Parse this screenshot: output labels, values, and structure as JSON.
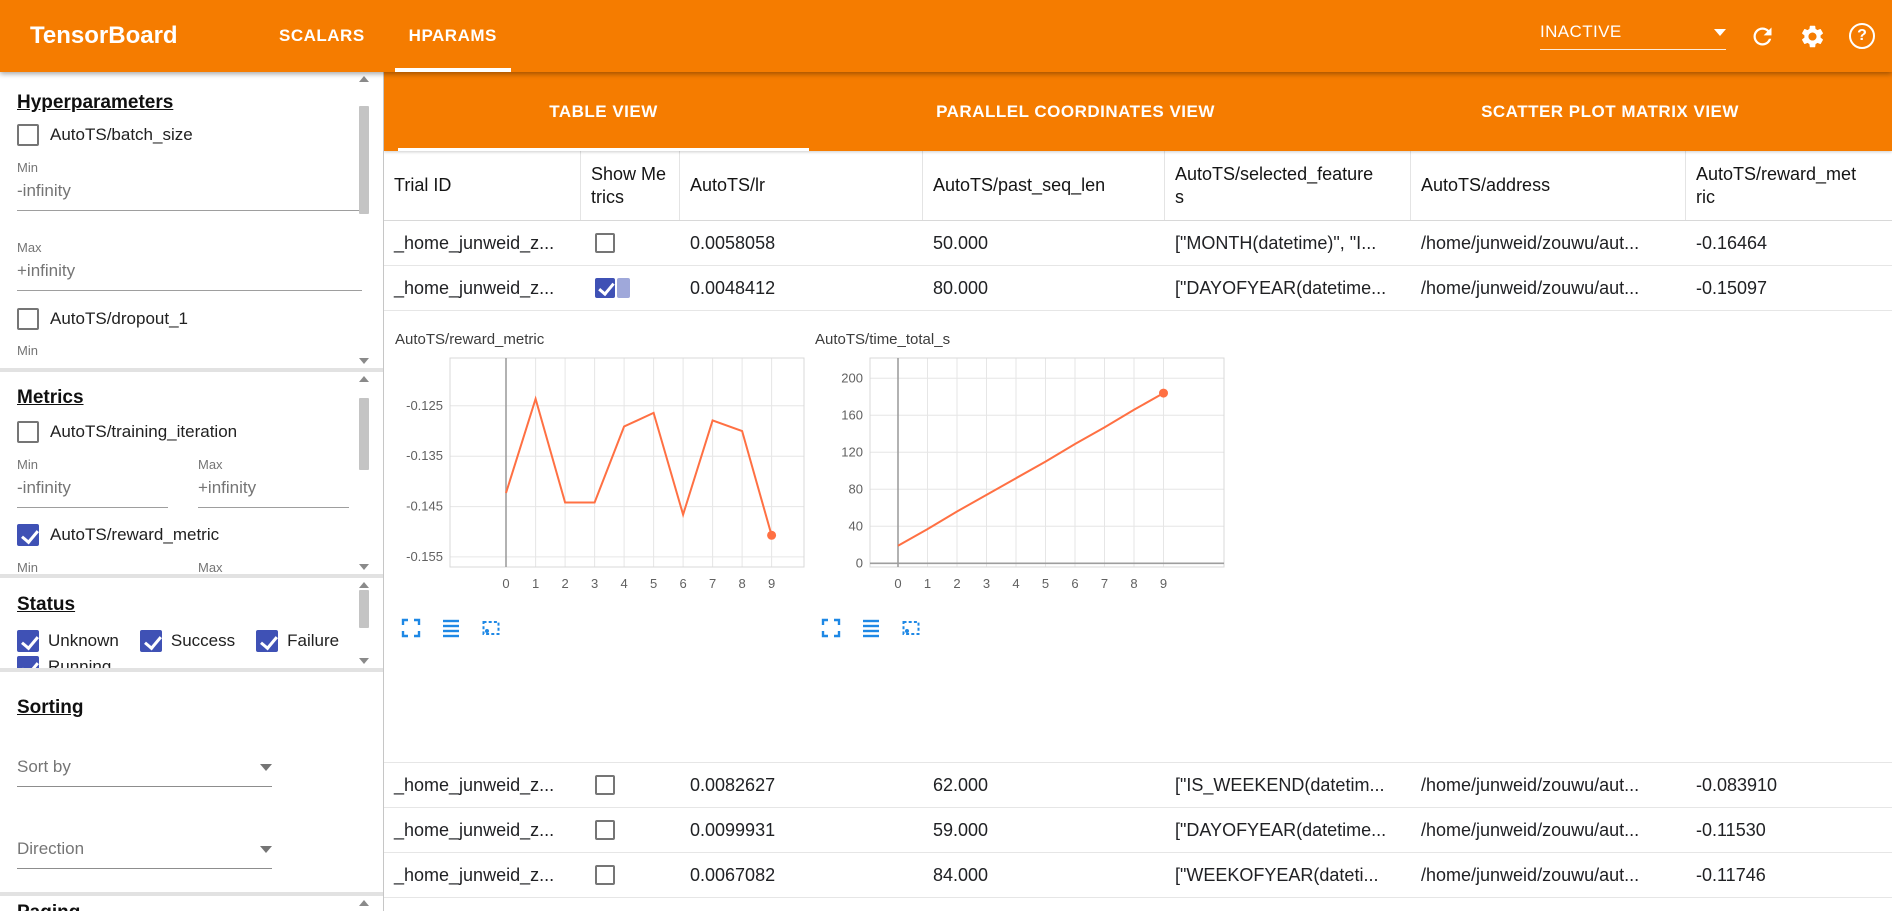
{
  "header": {
    "app_title": "TensorBoard",
    "tabs": [
      {
        "label": "SCALARS",
        "active": false
      },
      {
        "label": "HPARAMS",
        "active": true
      }
    ],
    "status_dropdown": "INACTIVE",
    "icons": [
      "refresh-icon",
      "gear-icon",
      "help-icon"
    ]
  },
  "sidebar": {
    "hyperparameters": {
      "title": "Hyperparameters",
      "items": [
        {
          "label": "AutoTS/batch_size",
          "checked": false
        },
        {
          "label": "AutoTS/dropout_1",
          "checked": false
        }
      ],
      "min_label": "Min",
      "max_label": "Max",
      "min_value": "-infinity",
      "max_value": "+infinity",
      "dropout_min_label": "Min"
    },
    "metrics": {
      "title": "Metrics",
      "items": [
        {
          "label": "AutoTS/training_iteration",
          "checked": false
        },
        {
          "label": "AutoTS/reward_metric",
          "checked": true
        }
      ],
      "min_label": "Min",
      "max_label": "Max",
      "min_value": "-infinity",
      "max_value": "+infinity"
    },
    "status": {
      "title": "Status",
      "items": [
        {
          "label": "Unknown",
          "checked": true
        },
        {
          "label": "Success",
          "checked": true
        },
        {
          "label": "Failure",
          "checked": true
        },
        {
          "label": "Running",
          "checked": true
        }
      ]
    },
    "sorting": {
      "title": "Sorting",
      "sort_by_placeholder": "Sort by",
      "direction_placeholder": "Direction"
    },
    "paging": {
      "title": "Paging"
    }
  },
  "main": {
    "view_tabs": [
      {
        "label": "TABLE VIEW",
        "active": true
      },
      {
        "label": "PARALLEL COORDINATES VIEW",
        "active": false
      },
      {
        "label": "SCATTER PLOT MATRIX VIEW",
        "active": false
      }
    ],
    "table": {
      "columns": [
        "Trial ID",
        "Show Metrics",
        "AutoTS/lr",
        "AutoTS/past_seq_len",
        "AutoTS/selected_features",
        "AutoTS/address",
        "AutoTS/reward_metric"
      ],
      "rows": [
        {
          "trial_id": "_home_junweid_z...",
          "show_metrics": false,
          "lr": "0.0058058",
          "past_seq_len": "50.000",
          "selected_features": "[\"MONTH(datetime)\", \"I...",
          "address": "/home/junweid/zouwu/aut...",
          "reward_metric": "-0.16464",
          "expanded": false
        },
        {
          "trial_id": "_home_junweid_z...",
          "show_metrics": true,
          "lr": "0.0048412",
          "past_seq_len": "80.000",
          "selected_features": "[\"DAYOFYEAR(datetime...",
          "address": "/home/junweid/zouwu/aut...",
          "reward_metric": "-0.15097",
          "expanded": true
        },
        {
          "trial_id": "_home_junweid_z...",
          "show_metrics": false,
          "lr": "0.0082627",
          "past_seq_len": "62.000",
          "selected_features": "[\"IS_WEEKEND(datetim...",
          "address": "/home/junweid/zouwu/aut...",
          "reward_metric": "-0.083910",
          "expanded": false
        },
        {
          "trial_id": "_home_junweid_z...",
          "show_metrics": false,
          "lr": "0.0099931",
          "past_seq_len": "59.000",
          "selected_features": "[\"DAYOFYEAR(datetime...",
          "address": "/home/junweid/zouwu/aut...",
          "reward_metric": "-0.11530",
          "expanded": false
        },
        {
          "trial_id": "_home_junweid_z...",
          "show_metrics": false,
          "lr": "0.0067082",
          "past_seq_len": "84.000",
          "selected_features": "[\"WEEKOFYEAR(dateti...",
          "address": "/home/junweid/zouwu/aut...",
          "reward_metric": "-0.11746",
          "expanded": false
        }
      ]
    }
  },
  "colors": {
    "brand_orange": "#f57c00",
    "checkbox_indigo": "#3f51b5",
    "chart_line": "#ff7043",
    "chart_icon_blue": "#1e88e5"
  },
  "chart_data": [
    {
      "type": "line",
      "title": "AutoTS/reward_metric",
      "xlabel": "",
      "ylabel": "",
      "x": [
        0,
        1,
        2,
        3,
        4,
        5,
        6,
        7,
        8,
        9
      ],
      "values": [
        -0.1423,
        -0.1236,
        -0.1442,
        -0.1442,
        -0.1291,
        -0.1264,
        -0.1466,
        -0.1279,
        -0.13,
        -0.1507
      ],
      "xlim": [
        -1.9,
        10.1
      ],
      "ylim": [
        -0.157,
        -0.1155
      ],
      "xticks": [
        0,
        1,
        2,
        3,
        4,
        5,
        6,
        7,
        8,
        9
      ],
      "yticks": [
        -0.125,
        -0.135,
        -0.145,
        -0.155
      ],
      "grid": true,
      "line_color": "#ff7043",
      "end_marker": true
    },
    {
      "type": "line",
      "title": "AutoTS/time_total_s",
      "xlabel": "",
      "ylabel": "",
      "x": [
        0,
        1,
        2,
        3,
        4,
        5,
        6,
        7,
        8,
        9
      ],
      "values": [
        19,
        37,
        56,
        74,
        92,
        110,
        129,
        147,
        166,
        184
      ],
      "xlim": [
        -0.95,
        11.05
      ],
      "ylim": [
        -4,
        222
      ],
      "xticks": [
        0,
        1,
        2,
        3,
        4,
        5,
        6,
        7,
        8,
        9
      ],
      "yticks": [
        0,
        40,
        80,
        120,
        160,
        200
      ],
      "grid": true,
      "line_color": "#ff7043",
      "end_marker": true
    }
  ]
}
